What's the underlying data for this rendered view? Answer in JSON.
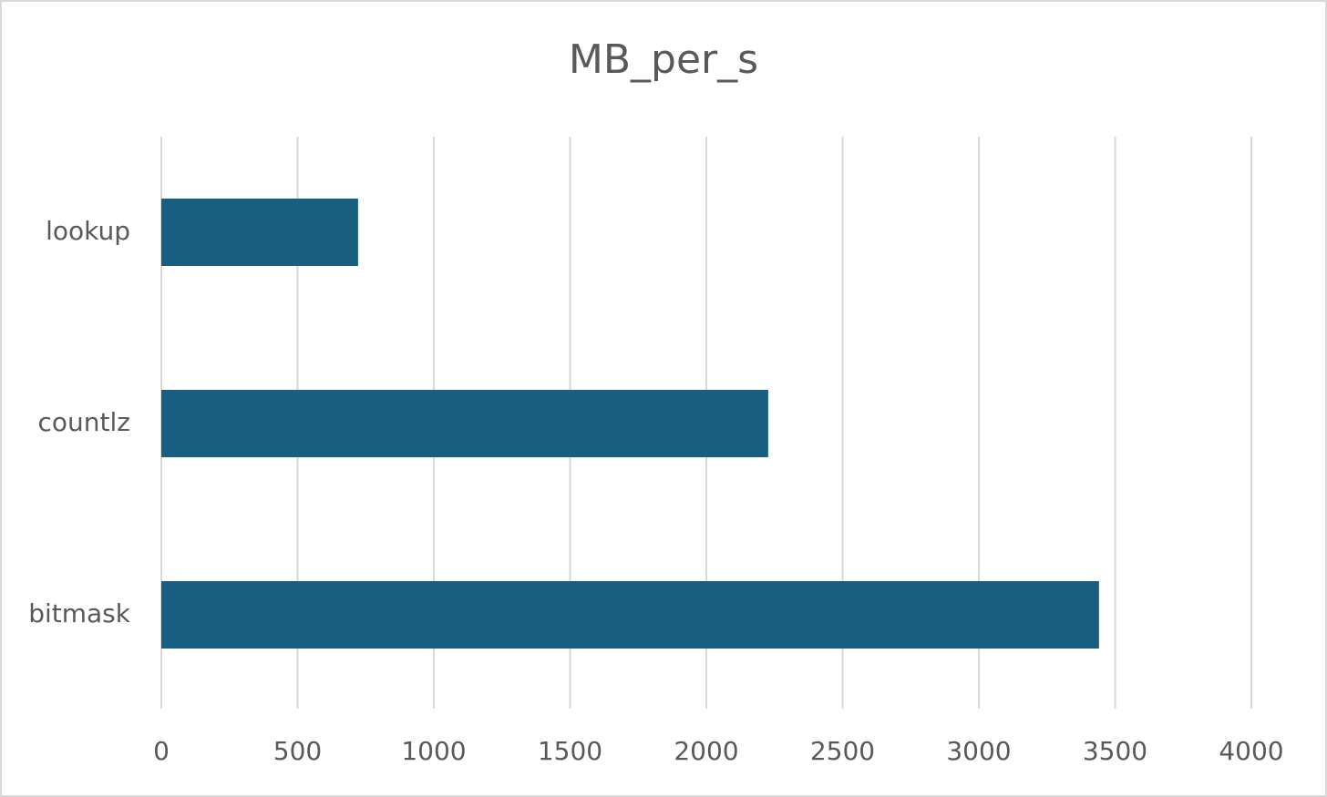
{
  "chart_data": {
    "type": "bar",
    "title": "MB_per_s",
    "categories": [
      "lookup",
      "countlz",
      "bitmask"
    ],
    "values": [
      722,
      2227,
      3441
    ],
    "color": "#175e80",
    "xlim": [
      0,
      4000
    ],
    "xticks": [
      0,
      500,
      1000,
      1500,
      2000,
      2500,
      3000,
      3500,
      4000
    ],
    "grid": true
  }
}
